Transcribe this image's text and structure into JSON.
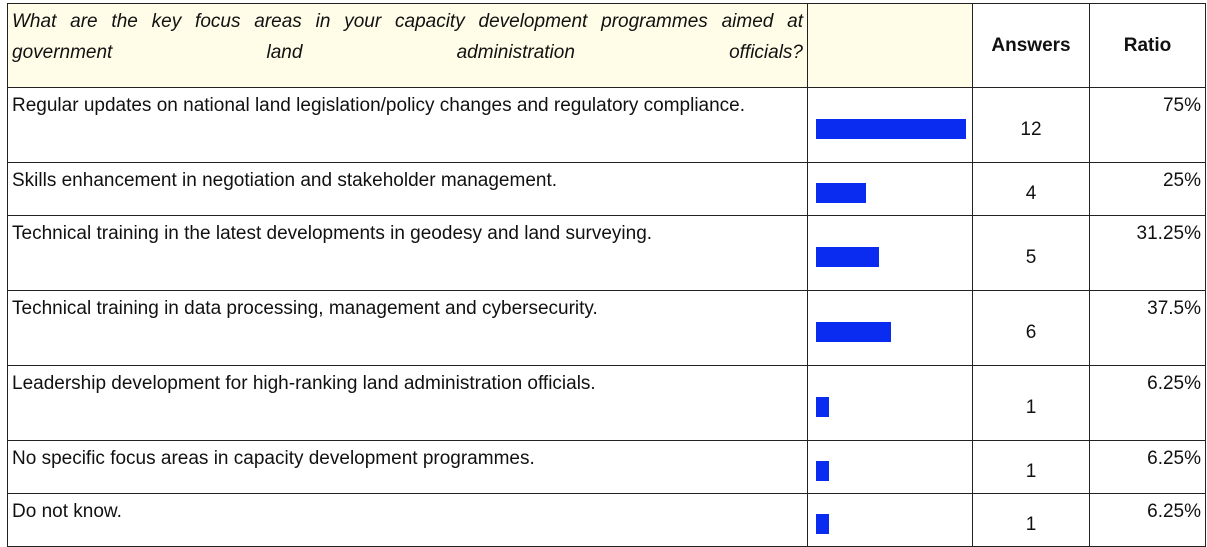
{
  "header": {
    "question": "What are the key focus areas in your capacity development programmes aimed at government land administration officials?",
    "answers": "Answers",
    "ratio": "Ratio"
  },
  "rows": [
    {
      "option": "Regular updates on national land legislation/policy changes and regulatory compliance.",
      "answers": 12,
      "ratio": "75%"
    },
    {
      "option": "Skills enhancement in negotiation and stakeholder management.",
      "answers": 4,
      "ratio": "25%"
    },
    {
      "option": "Technical training in the latest developments in geodesy and land surveying.",
      "answers": 5,
      "ratio": "31.25%"
    },
    {
      "option": "Technical training in data processing, management and cybersecurity.",
      "answers": 6,
      "ratio": "37.5%"
    },
    {
      "option": "Leadership development for high-ranking land administration officials.",
      "answers": 1,
      "ratio": "6.25%"
    },
    {
      "option": "No specific focus areas in capacity development programmes.",
      "answers": 1,
      "ratio": "6.25%"
    },
    {
      "option": "Do not know.",
      "answers": 1,
      "ratio": "6.25%"
    }
  ]
}
